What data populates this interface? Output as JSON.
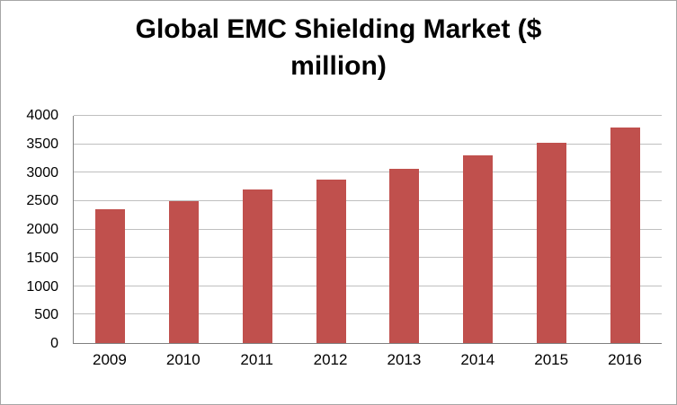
{
  "chart_data": {
    "type": "bar",
    "title": "Global EMC Shielding Market ($ million)",
    "categories": [
      "2009",
      "2010",
      "2011",
      "2012",
      "2013",
      "2014",
      "2015",
      "2016"
    ],
    "values": [
      2350,
      2500,
      2700,
      2880,
      3070,
      3300,
      3530,
      3800
    ],
    "xlabel": "",
    "ylabel": "",
    "ylim": [
      0,
      4000
    ],
    "ytick_step": 500,
    "ytick_labels": [
      "0",
      "500",
      "1000",
      "1500",
      "2000",
      "2500",
      "3000",
      "3500",
      "4000"
    ],
    "grid": true,
    "legend": "none",
    "bar_color": "#c0504d"
  }
}
